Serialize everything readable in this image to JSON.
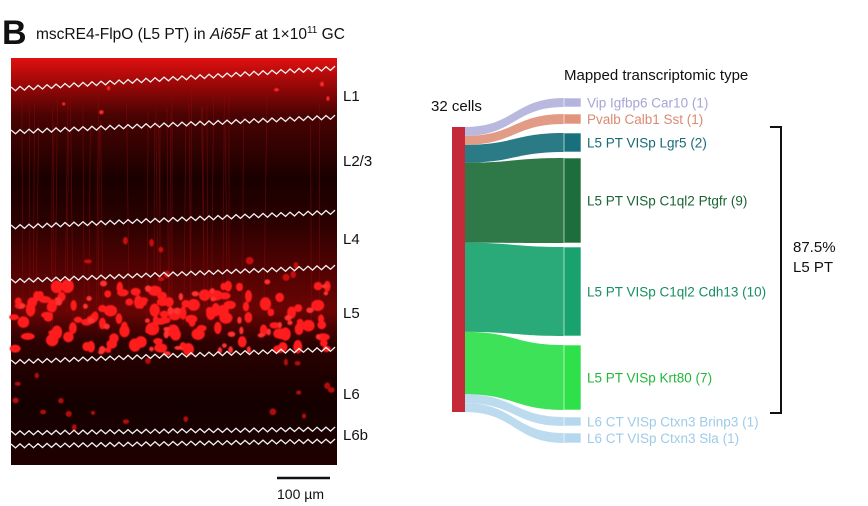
{
  "panel": {
    "letter": "B",
    "title_prefix": "mscRE4-FlpO (L5 PT) in ",
    "title_italic": "Ai65F",
    "title_suffix": " at 1×10",
    "title_sup": "11",
    "title_unit": " GC"
  },
  "micrograph": {
    "layers": [
      "L1",
      "L2/3",
      "L4",
      "L5",
      "L6",
      "L6b"
    ],
    "scale_bar_label": "100 µm"
  },
  "sankey": {
    "source_label": "32 cells",
    "header": "Mapped transcriptomic type",
    "bracket_percent": "87.5%",
    "bracket_class": "L5 PT",
    "source_color": "#c42a37",
    "types": [
      {
        "label": "Vip Igfbp6 Car10 (1)",
        "count": 1,
        "color": "#b3b3dd",
        "text_color": "#a5a5d5"
      },
      {
        "label": "Pvalb Calb1 Sst (1)",
        "count": 1,
        "color": "#e0947c",
        "text_color": "#d98a70"
      },
      {
        "label": "L5 PT VISp Lgr5 (2)",
        "count": 2,
        "color": "#19707d",
        "text_color": "#186a77"
      },
      {
        "label": "L5 PT VISp C1ql2 Ptgfr (9)",
        "count": 9,
        "color": "#1d6e3a",
        "text_color": "#1a6335"
      },
      {
        "label": "L5 PT VISp C1ql2 Cdh13 (10)",
        "count": 10,
        "color": "#18a26e",
        "text_color": "#168f61"
      },
      {
        "label": "L5 PT VISp Krt80 (7)",
        "count": 7,
        "color": "#2ee04a",
        "text_color": "#22b83a"
      },
      {
        "label": "L6 CT VISp Ctxn3 Brinp3 (1)",
        "count": 1,
        "color": "#b6d8ee",
        "text_color": "#9ecbe8"
      },
      {
        "label": "L6 CT VISp Ctxn3 Sla (1)",
        "count": 1,
        "color": "#b6d8ee",
        "text_color": "#9ecbe8"
      }
    ]
  }
}
